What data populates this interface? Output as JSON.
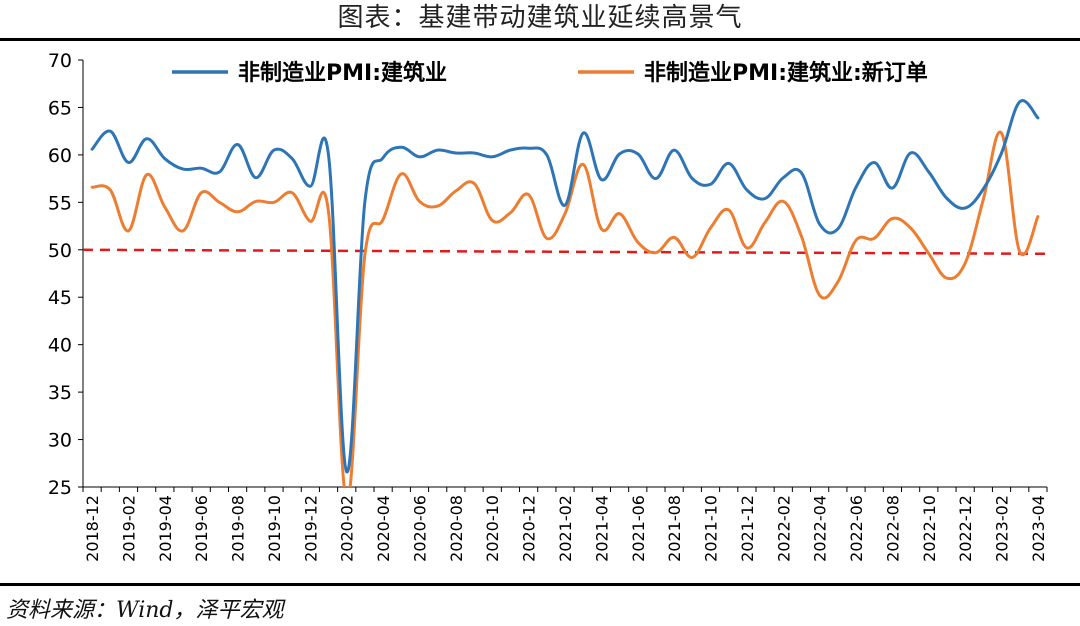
{
  "header": {
    "title": "图表：基建带动建筑业延续高景气"
  },
  "footer": {
    "source": "资料来源：Wind，泽平宏观"
  },
  "chart_data": {
    "type": "line",
    "title": "图表：基建带动建筑业延续高景气",
    "x": [
      "2018-12",
      "2019-01",
      "2019-02",
      "2019-03",
      "2019-04",
      "2019-05",
      "2019-06",
      "2019-07",
      "2019-08",
      "2019-09",
      "2019-10",
      "2019-11",
      "2019-12",
      "2020-01",
      "2020-02",
      "2020-03",
      "2020-04",
      "2020-05",
      "2020-06",
      "2020-07",
      "2020-08",
      "2020-09",
      "2020-10",
      "2020-11",
      "2020-12",
      "2021-01",
      "2021-02",
      "2021-03",
      "2021-04",
      "2021-05",
      "2021-06",
      "2021-07",
      "2021-08",
      "2021-09",
      "2021-10",
      "2021-11",
      "2021-12",
      "2022-01",
      "2022-02",
      "2022-03",
      "2022-04",
      "2022-05",
      "2022-06",
      "2022-07",
      "2022-08",
      "2022-09",
      "2022-10",
      "2022-11",
      "2022-12",
      "2023-01",
      "2023-02",
      "2023-03",
      "2023-04"
    ],
    "tick_labels": [
      "2018-12",
      "2019-02",
      "2019-04",
      "2019-06",
      "2019-08",
      "2019-10",
      "2019-12",
      "2020-02",
      "2020-04",
      "2020-06",
      "2020-08",
      "2020-10",
      "2020-12",
      "2021-02",
      "2021-04",
      "2021-06",
      "2021-08",
      "2021-10",
      "2021-12",
      "2022-02",
      "2022-04",
      "2022-06",
      "2022-08",
      "2022-10",
      "2022-12",
      "2023-02",
      "2023-04"
    ],
    "series": [
      {
        "name": "非制造业PMI:建筑业",
        "color": "#2e75b6",
        "values": [
          60.6,
          62.5,
          59.2,
          61.7,
          59.6,
          58.5,
          58.6,
          58.2,
          61.1,
          57.6,
          60.5,
          59.6,
          56.7,
          60.0,
          26.6,
          55.1,
          59.7,
          60.8,
          59.8,
          60.5,
          60.2,
          60.2,
          59.8,
          60.5,
          60.7,
          60.0,
          54.7,
          62.3,
          57.4,
          60.1,
          60.1,
          57.5,
          60.5,
          57.5,
          56.9,
          59.1,
          56.3,
          55.4,
          57.6,
          58.1,
          52.7,
          52.2,
          56.6,
          59.2,
          56.5,
          60.2,
          58.2,
          55.4,
          54.4,
          56.4,
          60.2,
          65.6,
          63.9
        ]
      },
      {
        "name": "非制造业PMI:建筑业:新订单",
        "color": "#ed7d31",
        "values": [
          56.6,
          56.3,
          52.0,
          57.9,
          54.5,
          52.0,
          56.0,
          55.0,
          54.0,
          55.1,
          55.0,
          56.0,
          53.0,
          54.0,
          23.5,
          49.5,
          53.2,
          58.0,
          55.1,
          54.6,
          56.2,
          57.0,
          53.1,
          53.9,
          55.8,
          51.2,
          53.8,
          59.0,
          52.2,
          53.8,
          50.8,
          49.7,
          51.3,
          49.2,
          52.3,
          54.2,
          50.2,
          52.9,
          55.1,
          51.4,
          45.2,
          46.6,
          51.0,
          51.2,
          53.3,
          52.3,
          49.6,
          47.0,
          48.6,
          55.3,
          62.3,
          49.8,
          53.5
        ]
      }
    ],
    "reference_line": {
      "value": 50,
      "color": "#e3191c",
      "style": "dashed"
    },
    "ylim": [
      25,
      70
    ],
    "yticks": [
      25,
      30,
      35,
      40,
      45,
      50,
      55,
      60,
      65,
      70
    ],
    "xlabel": "",
    "ylabel": "",
    "legend_position": "top"
  }
}
